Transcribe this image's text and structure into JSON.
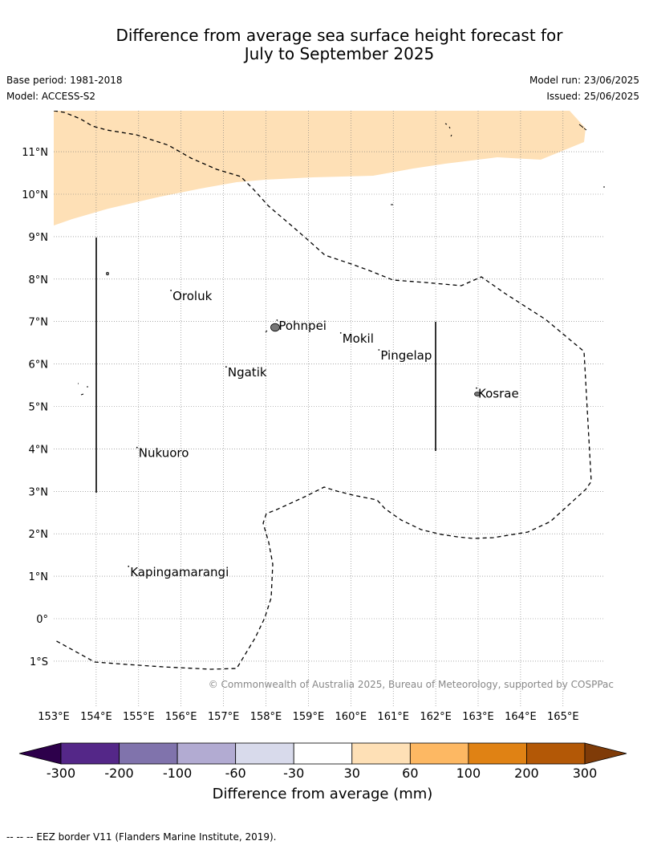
{
  "title_line1": "Difference from average sea surface height forecast for",
  "title_line2": "July to September 2025",
  "base_period": "Base period: 1981-2018",
  "model": "Model: ACCESS-S2",
  "model_run": "Model run: 23/06/2025",
  "issued": "Issued: 25/06/2025",
  "copyright": "© Commonwealth of Australia 2025, Bureau of Meteorology, supported by COSPPac",
  "lat_ticks": [
    "11°N",
    "10°N",
    "9°N",
    "8°N",
    "7°N",
    "6°N",
    "5°N",
    "4°N",
    "3°N",
    "2°N",
    "1°N",
    "0°",
    "1°S"
  ],
  "lon_ticks": [
    "153°E",
    "154°E",
    "155°E",
    "156°E",
    "157°E",
    "158°E",
    "159°E",
    "160°E",
    "161°E",
    "162°E",
    "163°E",
    "164°E",
    "165°E"
  ],
  "places": [
    {
      "name": "Oroluk",
      "lon": 155.8,
      "lat": 7.6
    },
    {
      "name": "Pohnpei",
      "lon": 158.3,
      "lat": 6.9
    },
    {
      "name": "Mokil",
      "lon": 159.8,
      "lat": 6.6
    },
    {
      "name": "Pingelap",
      "lon": 160.7,
      "lat": 6.2
    },
    {
      "name": "Ngatik",
      "lon": 157.1,
      "lat": 5.8
    },
    {
      "name": "Kosrae",
      "lon": 163.0,
      "lat": 5.3
    },
    {
      "name": "Nukuoro",
      "lon": 155.0,
      "lat": 3.9
    },
    {
      "name": "Kapingamarangi",
      "lon": 154.8,
      "lat": 1.1
    }
  ],
  "colorbar": {
    "title": "Difference from average (mm)",
    "tick_labels": [
      "-300",
      "-200",
      "-100",
      "-60",
      "-30",
      "30",
      "60",
      "100",
      "200",
      "300"
    ],
    "colors": [
      "#542788",
      "#8073ac",
      "#b2abd2",
      "#d8daeb",
      "#ffffff",
      "#fee0b6",
      "#fdb863",
      "#e08214",
      "#b35806"
    ],
    "under_color": "#2d004b",
    "over_color": "#7f3b08"
  },
  "map_fill_color": "#fee0b6",
  "footnote": "-- -- -- EEZ border V11 (Flanders Marine Institute, 2019)."
}
